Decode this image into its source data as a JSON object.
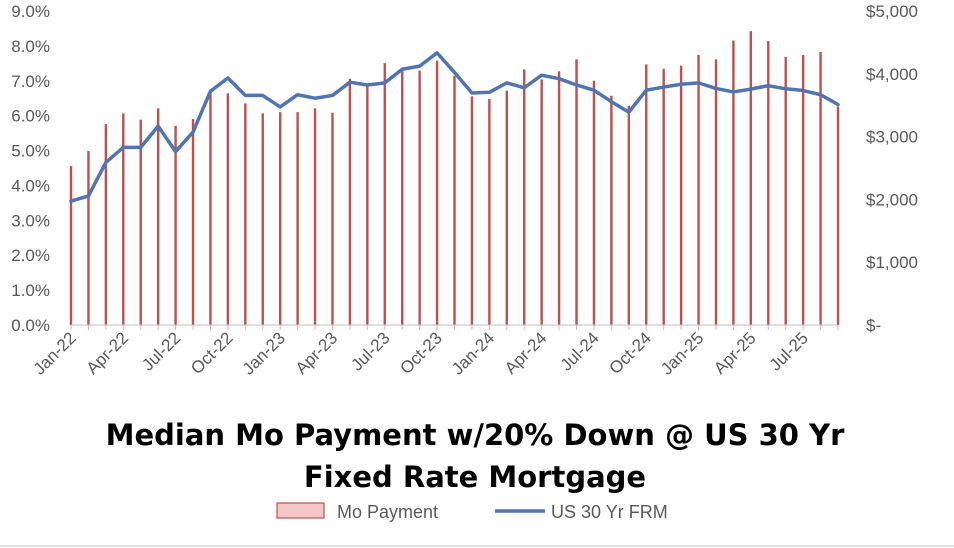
{
  "chart_data": {
    "type": "bar+line",
    "title_lines": [
      "Median Mo Payment w/20% Down @ US 30 Yr",
      "Fixed Rate Mortgage"
    ],
    "x_tick_labels": [
      "Jan-22",
      "Apr-22",
      "Jul-22",
      "Oct-22",
      "Jan-23",
      "Apr-23",
      "Jul-23",
      "Oct-23",
      "Jan-24",
      "Apr-24",
      "Jul-24",
      "Oct-24",
      "Jan-25",
      "Apr-25",
      "Jul-25"
    ],
    "x": [
      "Jan-22",
      "Feb-22",
      "Mar-22",
      "Apr-22",
      "May-22",
      "Jun-22",
      "Jul-22",
      "Aug-22",
      "Sep-22",
      "Oct-22",
      "Nov-22",
      "Dec-22",
      "Jan-23",
      "Feb-23",
      "Mar-23",
      "Apr-23",
      "May-23",
      "Jun-23",
      "Jul-23",
      "Aug-23",
      "Sep-23",
      "Oct-23",
      "Nov-23",
      "Dec-23",
      "Jan-24",
      "Feb-24",
      "Mar-24",
      "Apr-24",
      "May-24",
      "Jun-24",
      "Jul-24",
      "Aug-24",
      "Sep-24",
      "Oct-24",
      "Nov-24",
      "Dec-24",
      "Jan-25",
      "Feb-25",
      "Mar-25",
      "Apr-25",
      "May-25",
      "Jun-25",
      "Jul-25",
      "Aug-25",
      "Sep-25"
    ],
    "left_axis": {
      "ticks": [
        "0.0%",
        "1.0%",
        "2.0%",
        "3.0%",
        "4.0%",
        "5.0%",
        "6.0%",
        "7.0%",
        "8.0%",
        "9.0%"
      ],
      "min": 0,
      "max": 9
    },
    "right_axis": {
      "ticks": [
        "$-",
        "$1,000",
        "$2,000",
        "$3,000",
        "$4,000",
        "$5,000"
      ],
      "min": 0,
      "max": 5000
    },
    "series": [
      {
        "name": "Mo Payment",
        "kind": "bar",
        "axis": "right",
        "color": "#c0504d",
        "values": [
          2530,
          2770,
          3200,
          3370,
          3270,
          3450,
          3170,
          3280,
          3750,
          3690,
          3530,
          3370,
          3390,
          3390,
          3450,
          3380,
          3920,
          3820,
          4170,
          4080,
          4050,
          4210,
          3970,
          3640,
          3600,
          3730,
          4070,
          3910,
          4040,
          4230,
          3890,
          3650,
          3490,
          4150,
          4080,
          4130,
          4300,
          4230,
          4530,
          4680,
          4520,
          4270,
          4300,
          4350,
          3480
        ]
      },
      {
        "name": "US 30 Yr FRM",
        "kind": "line",
        "axis": "left",
        "color": "#4f74b4",
        "values": [
          3.55,
          3.7,
          4.66,
          5.09,
          5.09,
          5.7,
          4.97,
          5.53,
          6.7,
          7.08,
          6.58,
          6.58,
          6.25,
          6.6,
          6.5,
          6.58,
          6.96,
          6.88,
          6.94,
          7.33,
          7.42,
          7.8,
          7.24,
          6.65,
          6.67,
          6.94,
          6.8,
          7.16,
          7.06,
          6.88,
          6.73,
          6.4,
          6.1,
          6.73,
          6.82,
          6.9,
          6.94,
          6.78,
          6.68,
          6.76,
          6.86,
          6.77,
          6.72,
          6.6,
          6.32
        ]
      }
    ],
    "legend": {
      "placement": "bottom"
    },
    "grid": false
  }
}
